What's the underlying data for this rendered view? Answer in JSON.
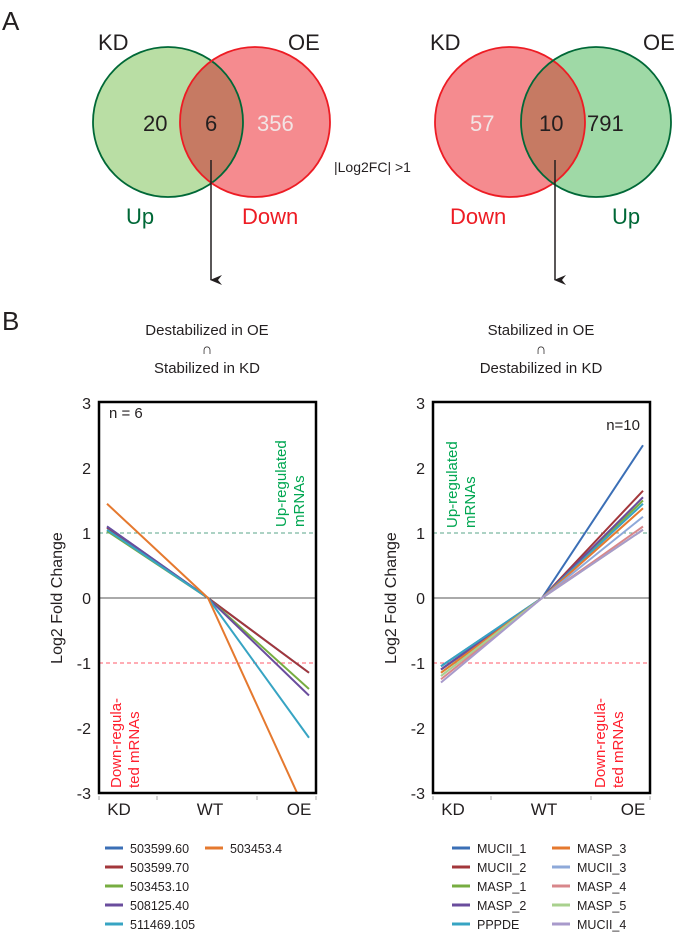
{
  "panels": {
    "a": "A",
    "b": "B"
  },
  "venn": [
    {
      "left_label": "KD",
      "right_label": "OE",
      "left_only": "20",
      "overlap": "6",
      "right_only": "356",
      "left_dir": "Up",
      "right_dir": "Down"
    },
    {
      "left_label": "KD",
      "right_label": "OE",
      "left_only": "57",
      "overlap": "10",
      "right_only": "791",
      "left_dir": "Down",
      "right_dir": "Up"
    }
  ],
  "threshold_label": "|Log2FC| >1",
  "colors": {
    "up_green": "#006837",
    "down_red": "#ed1c24",
    "green_fill": "#b9dea4",
    "green_fill2": "#9fd9a6",
    "red_fill": "#f58b8f",
    "overlap_fill": "#c67a63"
  },
  "chart_data": [
    {
      "type": "line",
      "title_lines": [
        "Destabilized in OE",
        "∩",
        "Stabilized in KD"
      ],
      "annotation": "n = 6",
      "ylabel": "Log2 Fold Change",
      "ylim": [
        -3,
        3
      ],
      "yticks": [
        "3",
        "2",
        "1",
        "0",
        "-1",
        "-2",
        "-3"
      ],
      "categories": [
        "KD",
        "WT",
        "OE"
      ],
      "thresholds": [
        1,
        -1
      ],
      "up_label": [
        "Up-regulated",
        "mRNAs"
      ],
      "down_label": [
        "Down-regula-",
        "ted mRNAs"
      ],
      "series": [
        {
          "name": "503599.60",
          "color": "#3b6fb6",
          "values": [
            1.1,
            0,
            -1.15
          ]
        },
        {
          "name": "503599.70",
          "color": "#a3373b",
          "values": [
            1.08,
            0,
            -1.15
          ]
        },
        {
          "name": "503453.10",
          "color": "#77ad41",
          "values": [
            1.03,
            0,
            -1.4
          ]
        },
        {
          "name": "508125.40",
          "color": "#6a4d9d",
          "values": [
            1.1,
            0,
            -1.5
          ]
        },
        {
          "name": "511469.105",
          "color": "#37a4c3",
          "values": [
            1.05,
            0,
            -2.15
          ]
        },
        {
          "name": "503453.4",
          "color": "#e5792f",
          "values": [
            1.45,
            0,
            -3.4
          ]
        }
      ]
    },
    {
      "type": "line",
      "title_lines": [
        "Stabilized in OE",
        "∩",
        "Destabilized in KD"
      ],
      "annotation": "n=10",
      "ylabel": "Log2 Fold Change",
      "ylim": [
        -3,
        3
      ],
      "yticks": [
        "3",
        "2",
        "1",
        "0",
        "-1",
        "-2",
        "-3"
      ],
      "categories": [
        "KD",
        "WT",
        "OE"
      ],
      "thresholds": [
        1,
        -1
      ],
      "up_label": [
        "Up-regulated",
        "mRNAs"
      ],
      "down_label": [
        "Down-regula-",
        "ted mRNAs"
      ],
      "series": [
        {
          "name": "MUCII_1",
          "color": "#3b6fb6",
          "values": [
            -1.05,
            0,
            2.35
          ]
        },
        {
          "name": "MUCII_2",
          "color": "#a3373b",
          "values": [
            -1.1,
            0,
            1.65
          ]
        },
        {
          "name": "MASP_1",
          "color": "#77ad41",
          "values": [
            -1.15,
            0,
            1.5
          ]
        },
        {
          "name": "MASP_2",
          "color": "#6a4d9d",
          "values": [
            -1.1,
            0,
            1.55
          ]
        },
        {
          "name": "PPPDE",
          "color": "#37a4c3",
          "values": [
            -1.05,
            0,
            1.45
          ]
        },
        {
          "name": "MASP_3",
          "color": "#e5792f",
          "values": [
            -1.15,
            0,
            1.38
          ]
        },
        {
          "name": "MUCII_3",
          "color": "#8ea9d9",
          "values": [
            -1.2,
            0,
            1.25
          ]
        },
        {
          "name": "MASP_4",
          "color": "#d8878b",
          "values": [
            -1.25,
            0,
            1.1
          ]
        },
        {
          "name": "MASP_5",
          "color": "#a9d18e",
          "values": [
            -1.2,
            0,
            1.05
          ]
        },
        {
          "name": "MUCII_4",
          "color": "#a89acb",
          "values": [
            -1.3,
            0,
            1.05
          ]
        }
      ]
    }
  ]
}
